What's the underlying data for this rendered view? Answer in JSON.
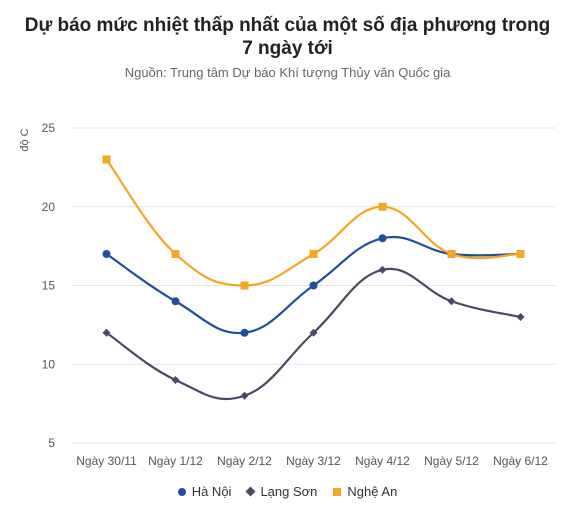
{
  "header": {
    "title": "Dự báo mức nhiệt thấp nhất của một số địa phương trong 7 ngày tới",
    "subtitle": "Nguồn: Trung tâm Dự báo Khí tượng Thủy văn Quốc gia"
  },
  "chart_data": {
    "type": "line",
    "title": "Dự báo mức nhiệt thấp nhất của một số địa phương trong 7 ngày tới",
    "subtitle": "Nguồn: Trung tâm Dự báo Khí tượng Thủy văn Quốc gia",
    "xlabel": "",
    "ylabel": "độ C",
    "ylim": [
      5,
      25
    ],
    "yticks": [
      5,
      10,
      15,
      20,
      25
    ],
    "grid": true,
    "legend_position": "bottom",
    "categories": [
      "Ngày 30/11",
      "Ngày 1/12",
      "Ngày 2/12",
      "Ngày 3/12",
      "Ngày 4/12",
      "Ngày 5/12",
      "Ngày 6/12"
    ],
    "series": [
      {
        "name": "Hà Nội",
        "values": [
          17,
          14,
          12,
          15,
          18,
          17,
          17
        ],
        "color": "#1f4e9c",
        "marker": "circle"
      },
      {
        "name": "Lạng Sơn",
        "values": [
          12,
          9,
          8,
          12,
          16,
          14,
          13
        ],
        "color": "#4f4766",
        "marker": "diamond"
      },
      {
        "name": "Nghệ An",
        "values": [
          23,
          17,
          15,
          17,
          20,
          17,
          17
        ],
        "color": "#f5a623",
        "marker": "square"
      }
    ]
  }
}
